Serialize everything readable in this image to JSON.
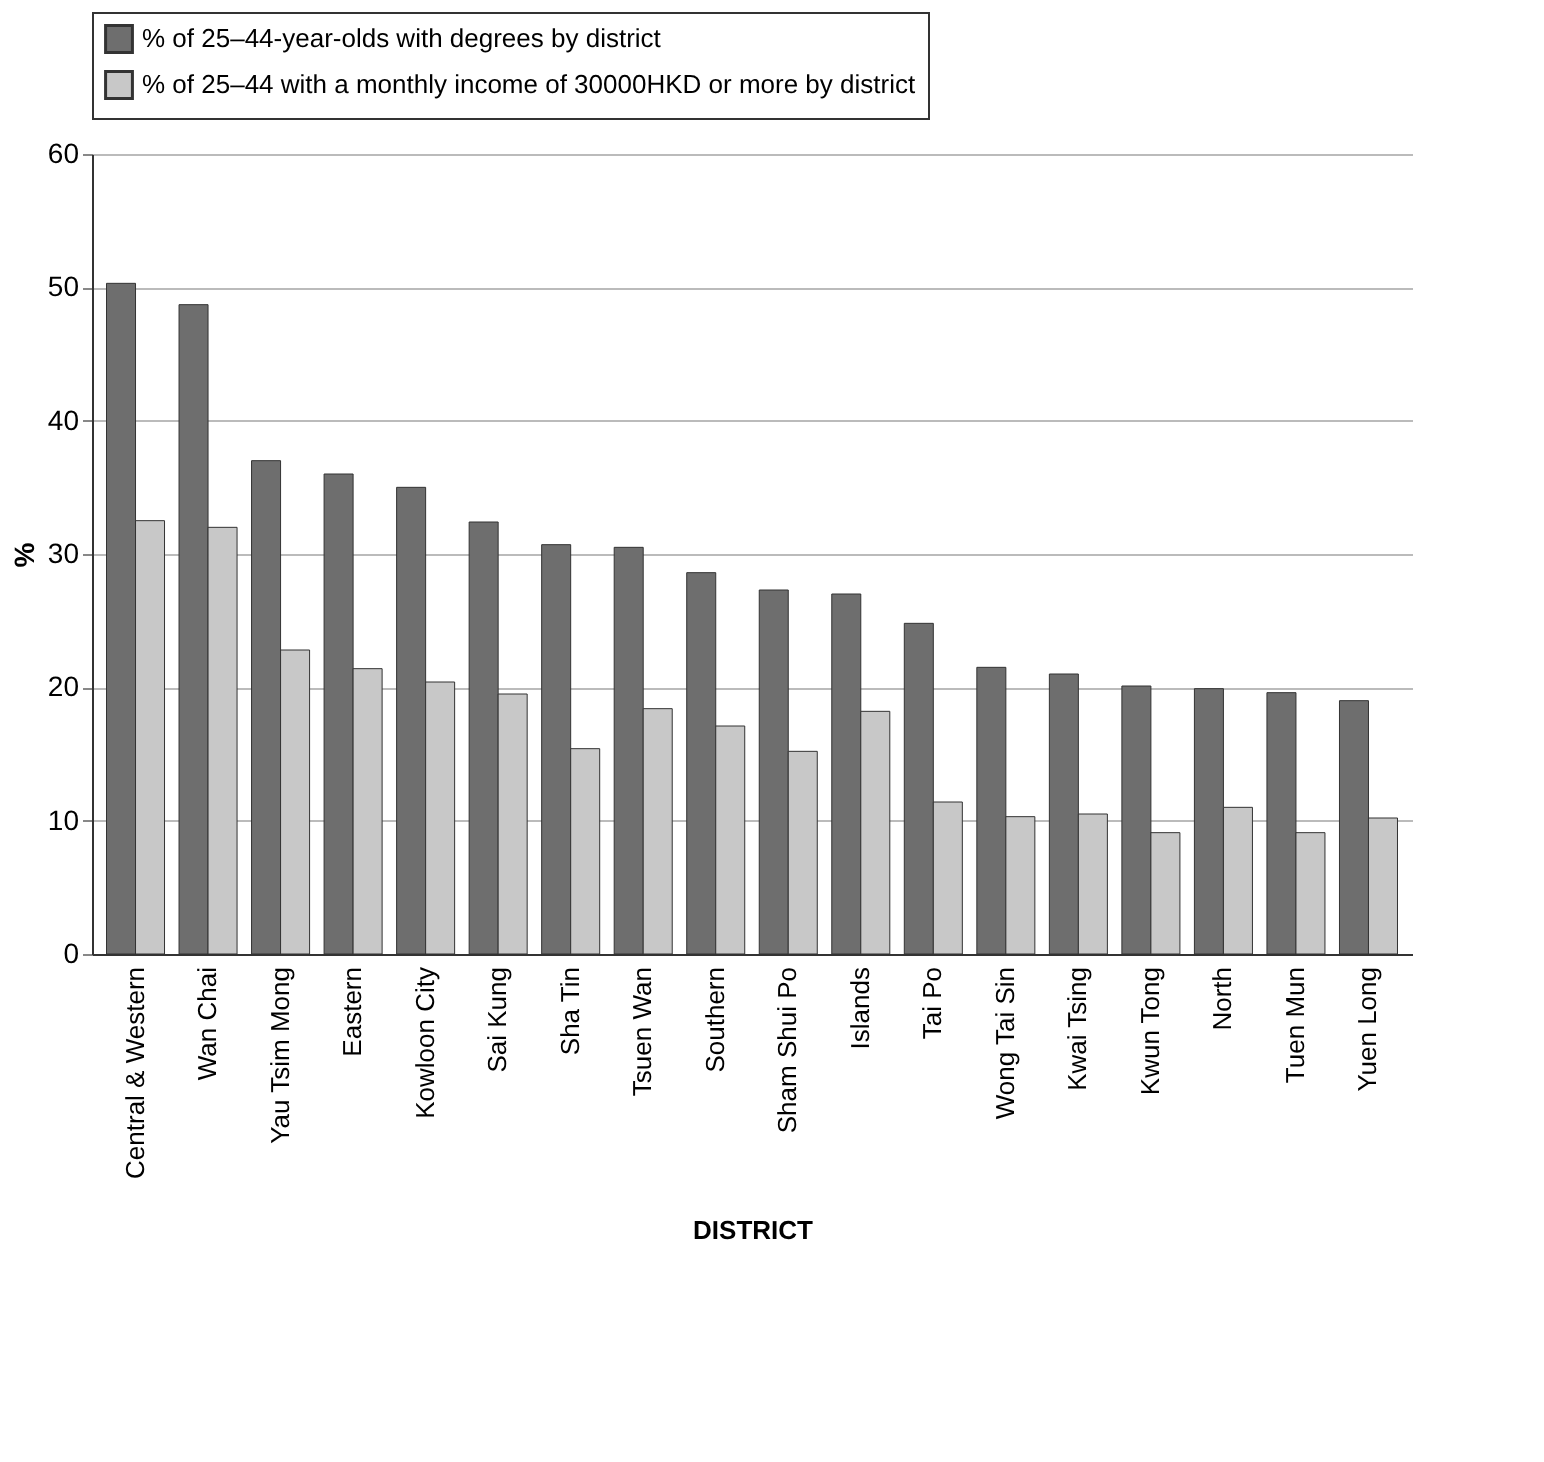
{
  "chart_data": {
    "type": "bar",
    "xlabel": "DISTRICT",
    "ylabel": "%",
    "categories": [
      "Central & Western",
      "Wan Chai",
      "Yau Tsim Mong",
      "Eastern",
      "Kowloon City",
      "Sai Kung",
      "Sha Tin",
      "Tsuen Wan",
      "Southern",
      "Sham Shui Po",
      "Islands",
      "Tai Po",
      "Wong Tai Sin",
      "Kwai Tsing",
      "Kwun Tong",
      "North",
      "Tuen Mun",
      "Yuen Long"
    ],
    "series": [
      {
        "name": "% of 25–44-year-olds with degrees by district",
        "color": "#6e6e6e",
        "values": [
          50.3,
          48.7,
          37,
          36,
          35,
          32.4,
          30.7,
          30.5,
          28.6,
          27.3,
          27,
          24.8,
          21.5,
          21,
          20.1,
          19.9,
          19.6,
          19
        ]
      },
      {
        "name": "% of 25–44 with a monthly income of 30000HKD or more by district",
        "color": "#c8c8c8",
        "values": [
          32.5,
          32,
          22.8,
          21.4,
          20.4,
          19.5,
          15.4,
          18.4,
          17.1,
          15.2,
          18.2,
          11.4,
          10.3,
          10.5,
          9.1,
          11,
          9.1,
          10.2
        ]
      }
    ],
    "ylim": [
      0,
      60
    ],
    "yticks": [
      0,
      10,
      20,
      30,
      40,
      50,
      60
    ],
    "grid": "y",
    "legend": "top"
  }
}
